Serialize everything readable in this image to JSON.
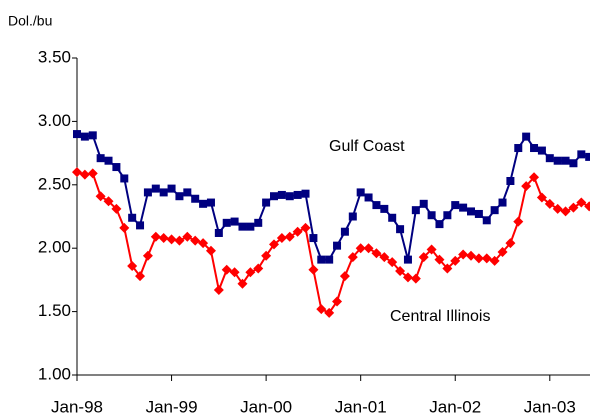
{
  "chart_data": {
    "type": "line",
    "y_axis_label": "Dol./bu",
    "categories": [
      "Jan-98",
      null,
      null,
      null,
      null,
      null,
      null,
      null,
      null,
      null,
      null,
      null,
      "Jan-99",
      null,
      null,
      null,
      null,
      null,
      null,
      null,
      null,
      null,
      null,
      null,
      "Jan-00",
      null,
      null,
      null,
      null,
      null,
      null,
      null,
      null,
      null,
      null,
      null,
      "Jan-01",
      null,
      null,
      null,
      null,
      null,
      null,
      null,
      null,
      null,
      null,
      null,
      "Jan-02",
      null,
      null,
      null,
      null,
      null,
      null,
      null,
      null,
      null,
      null,
      null,
      "Jan-03",
      null,
      null,
      null,
      null,
      null
    ],
    "series": [
      {
        "name": "Gulf Coast",
        "color": "#000080",
        "marker": "square",
        "values": [
          2.9,
          2.88,
          2.89,
          2.71,
          2.69,
          2.64,
          2.55,
          2.24,
          2.18,
          2.44,
          2.47,
          2.44,
          2.47,
          2.41,
          2.44,
          2.39,
          2.35,
          2.36,
          2.12,
          2.2,
          2.21,
          2.17,
          2.17,
          2.2,
          2.36,
          2.41,
          2.42,
          2.41,
          2.42,
          2.43,
          2.08,
          1.91,
          1.91,
          2.02,
          2.13,
          2.25,
          2.44,
          2.4,
          2.34,
          2.31,
          2.24,
          2.15,
          1.91,
          2.3,
          2.35,
          2.26,
          2.19,
          2.26,
          2.34,
          2.32,
          2.29,
          2.27,
          2.22,
          2.3,
          2.36,
          2.53,
          2.79,
          2.88,
          2.79,
          2.77,
          2.71,
          2.69,
          2.69,
          2.67,
          2.74,
          2.72
        ]
      },
      {
        "name": "Central Illinois",
        "color": "#ff0000",
        "marker": "diamond",
        "values": [
          2.6,
          2.58,
          2.59,
          2.41,
          2.37,
          2.31,
          2.16,
          1.86,
          1.78,
          1.94,
          2.09,
          2.08,
          2.07,
          2.06,
          2.09,
          2.06,
          2.04,
          1.98,
          1.67,
          1.83,
          1.81,
          1.72,
          1.81,
          1.84,
          1.94,
          2.03,
          2.08,
          2.09,
          2.13,
          2.16,
          1.83,
          1.52,
          1.49,
          1.58,
          1.78,
          1.93,
          2.0,
          2.0,
          1.96,
          1.93,
          1.89,
          1.82,
          1.77,
          1.76,
          1.93,
          1.99,
          1.91,
          1.84,
          1.9,
          1.95,
          1.94,
          1.92,
          1.92,
          1.9,
          1.97,
          2.04,
          2.21,
          2.49,
          2.56,
          2.4,
          2.35,
          2.31,
          2.29,
          2.32,
          2.36,
          2.33
        ]
      }
    ],
    "ylim": [
      1,
      3.5
    ],
    "yticks": [
      {
        "value": 1,
        "label": "1.00"
      },
      {
        "value": 1.5,
        "label": "1.50"
      },
      {
        "value": 2,
        "label": "2.00"
      },
      {
        "value": 2.5,
        "label": "2.50"
      },
      {
        "value": 3,
        "label": "3.00"
      },
      {
        "value": 3.5,
        "label": "3.50"
      }
    ],
    "grid": false,
    "legend": "inline"
  }
}
